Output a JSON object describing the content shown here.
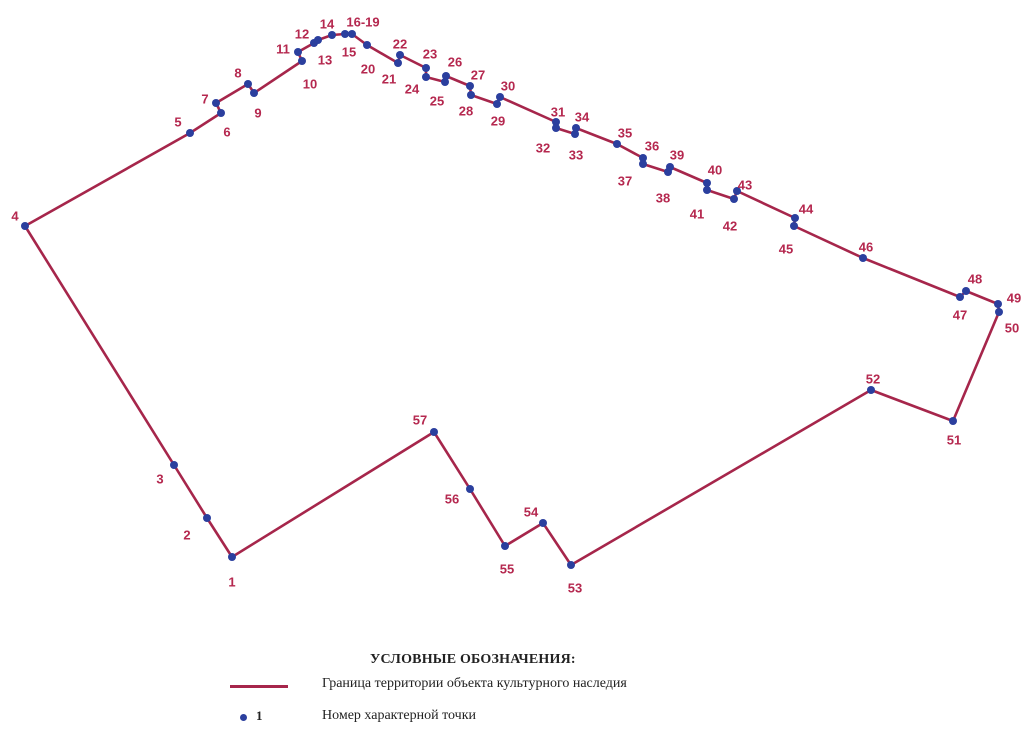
{
  "colors": {
    "boundary": "#a6264b",
    "point_fill": "#2b3f9e",
    "label": "#b5284f"
  },
  "points": [
    {
      "n": "1"
    },
    {
      "n": "2"
    },
    {
      "n": "3"
    },
    {
      "n": "4"
    },
    {
      "n": "5"
    },
    {
      "n": "6"
    },
    {
      "n": "7"
    },
    {
      "n": "8"
    },
    {
      "n": "9"
    },
    {
      "n": "10"
    },
    {
      "n": "11"
    },
    {
      "n": "12"
    },
    {
      "n": "13"
    },
    {
      "n": "14"
    },
    {
      "n": "15"
    },
    {
      "n": "16-19"
    },
    {
      "n": "20"
    },
    {
      "n": "21"
    },
    {
      "n": "22"
    },
    {
      "n": "23"
    },
    {
      "n": "24"
    },
    {
      "n": "25"
    },
    {
      "n": "26"
    },
    {
      "n": "27"
    },
    {
      "n": "28"
    },
    {
      "n": "29"
    },
    {
      "n": "30"
    },
    {
      "n": "31"
    },
    {
      "n": "32"
    },
    {
      "n": "33"
    },
    {
      "n": "34"
    },
    {
      "n": "35"
    },
    {
      "n": "36"
    },
    {
      "n": "37"
    },
    {
      "n": "38"
    },
    {
      "n": "39"
    },
    {
      "n": "40"
    },
    {
      "n": "41"
    },
    {
      "n": "42"
    },
    {
      "n": "43"
    },
    {
      "n": "44"
    },
    {
      "n": "45"
    },
    {
      "n": "46"
    },
    {
      "n": "47"
    },
    {
      "n": "48"
    },
    {
      "n": "49"
    },
    {
      "n": "50"
    },
    {
      "n": "51"
    },
    {
      "n": "52"
    },
    {
      "n": "53"
    },
    {
      "n": "54"
    },
    {
      "n": "55"
    },
    {
      "n": "56"
    },
    {
      "n": "57"
    }
  ],
  "legend": {
    "title": "УСЛОВНЫЕ ОБОЗНАЧЕНИЯ:",
    "boundary_label": "Граница территории объекта культурного наследия",
    "point_sample": "1",
    "point_label": "Номер характерной точки"
  }
}
